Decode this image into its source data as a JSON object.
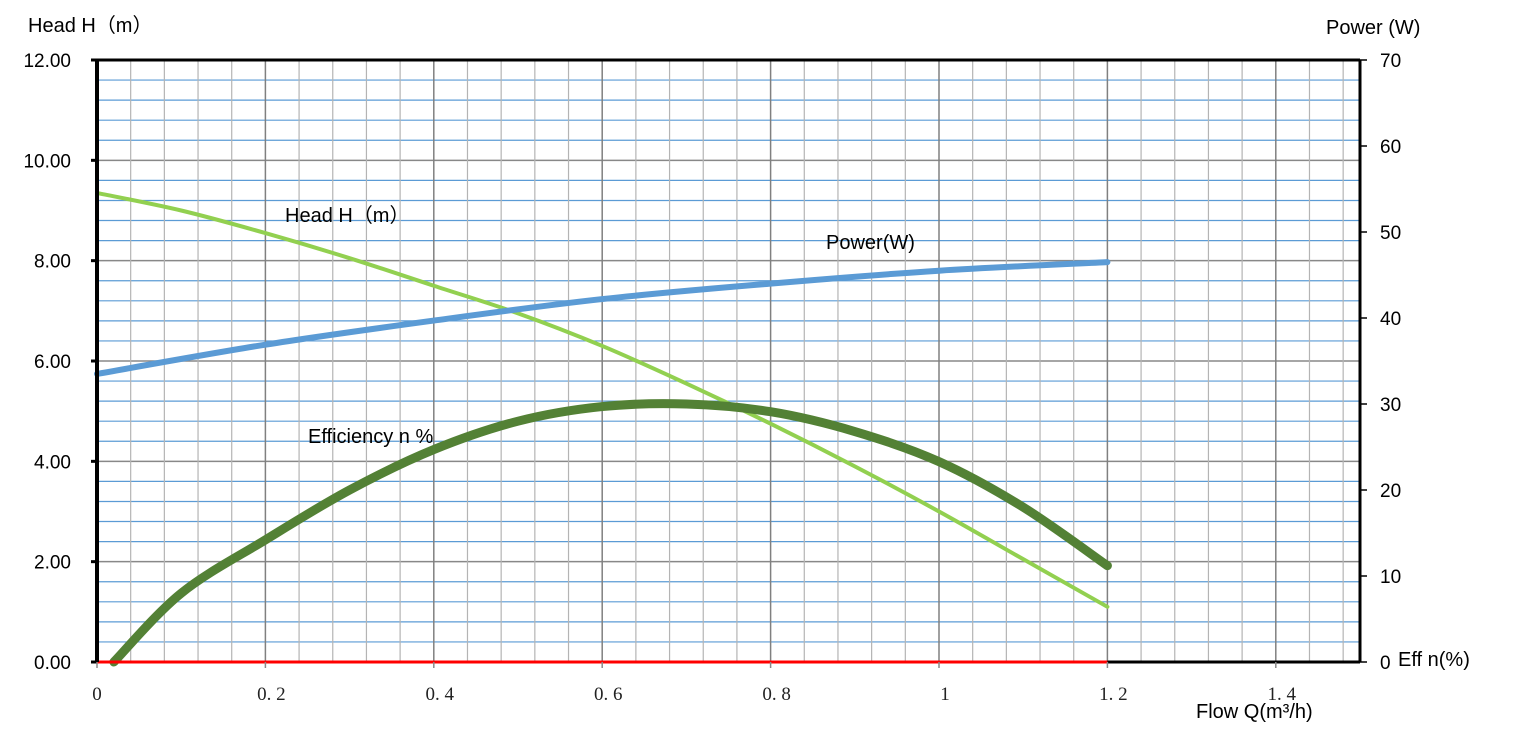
{
  "chart_data": {
    "type": "line",
    "title": "",
    "xlabel": "Flow Q(m³/h)",
    "ylabel": "Head H（m）",
    "ylabel_right": "Power (W)",
    "ylabel_right_bottom": "Eff n(%)",
    "xlim": [
      0,
      1.5
    ],
    "ylim": [
      0,
      12
    ],
    "ylim_right": [
      0,
      70
    ],
    "grid": true,
    "x_ticks": [
      "0",
      "0.2",
      "0.4",
      "0.6",
      "0.8",
      "1",
      "1.2",
      "1.4"
    ],
    "x_tick_values": [
      0,
      0.2,
      0.4,
      0.6,
      0.8,
      1.0,
      1.2,
      1.4
    ],
    "y_ticks": [
      "0.00",
      "2.00",
      "4.00",
      "6.00",
      "8.00",
      "10.00",
      "12.00"
    ],
    "y_tick_values": [
      0,
      2,
      4,
      6,
      8,
      10,
      12
    ],
    "y_right_ticks": [
      "0",
      "10",
      "20",
      "30",
      "40",
      "50",
      "60",
      "70"
    ],
    "y_right_tick_values": [
      0,
      10,
      20,
      30,
      40,
      50,
      60,
      70
    ],
    "series": [
      {
        "name": "Head  H（m）",
        "axis": "left",
        "color": "#92d050",
        "x": [
          0,
          0.1,
          0.2,
          0.3,
          0.4,
          0.5,
          0.6,
          0.7,
          0.8,
          0.9,
          1.0,
          1.1,
          1.2
        ],
        "values": [
          9.35,
          9.0,
          8.55,
          8.05,
          7.5,
          6.95,
          6.3,
          5.55,
          4.75,
          3.9,
          3.0,
          2.05,
          1.1
        ]
      },
      {
        "name": "Power(W)",
        "axis": "right",
        "color": "#5b9bd5",
        "x": [
          0,
          0.2,
          0.4,
          0.6,
          0.8,
          1.0,
          1.2
        ],
        "values": [
          33.5,
          36.9,
          39.7,
          42.2,
          44.0,
          45.5,
          46.5
        ]
      },
      {
        "name": "Efficiency n %",
        "axis": "right",
        "color": "#538135",
        "x": [
          0.02,
          0.1,
          0.2,
          0.3,
          0.4,
          0.5,
          0.6,
          0.7,
          0.8,
          0.9,
          1.0,
          1.1,
          1.2
        ],
        "values": [
          0,
          8.0,
          14.2,
          20.0,
          24.7,
          28.0,
          29.7,
          30.0,
          29.1,
          26.8,
          23.3,
          18.0,
          11.2
        ]
      },
      {
        "name": "baseline",
        "axis": "left",
        "color": "#ff0000",
        "x": [
          0,
          1.2
        ],
        "values": [
          0,
          0
        ]
      }
    ]
  }
}
